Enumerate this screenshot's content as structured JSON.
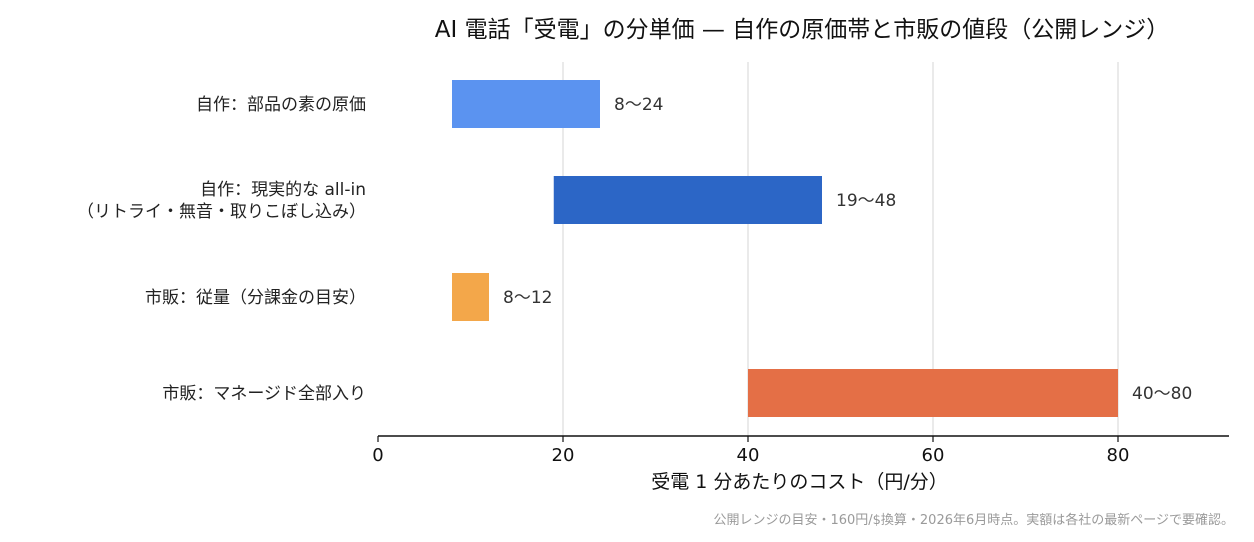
{
  "chart_data": {
    "type": "bar",
    "orientation": "horizontal-range",
    "title": "AI 電話「受電」の分単価 — 自作の原価帯と市販の値段（公開レンジ）",
    "xlabel": "受電 1 分あたりのコスト（円/分）",
    "ylabel": "",
    "xlim": [
      0,
      92
    ],
    "xticks": [
      0,
      20,
      40,
      60,
      80
    ],
    "grid": "vertical",
    "legend": "none",
    "categories": [
      [
        "自作：部品の素の原価"
      ],
      [
        "自作：現実的な all-in",
        "（リトライ・無音・取りこぼし込み）"
      ],
      [
        "市販：従量（分課金の目安）"
      ],
      [
        "市販：マネージド全部入り"
      ]
    ],
    "series": [
      {
        "ranges": [
          [
            8,
            24
          ],
          [
            19,
            48
          ],
          [
            8,
            12
          ],
          [
            40,
            80
          ]
        ],
        "labels": [
          "8〜24",
          "19〜48",
          "8〜12",
          "40〜80"
        ],
        "colors": [
          "#5b93f0",
          "#2c66c6",
          "#f3a74a",
          "#e46f46"
        ]
      }
    ]
  },
  "footnote": "公開レンジの目安・160円/$換算・2026年6月時点。実額は各社の最新ページで要確認。"
}
